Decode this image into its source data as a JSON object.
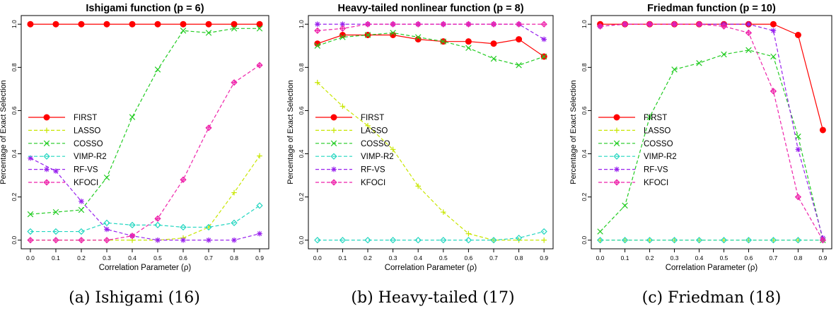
{
  "chart_data": [
    {
      "type": "line",
      "title": "Ishigami function (p = 6)",
      "xlabel": "Correlation Parameter (ρ)",
      "ylabel": "Percentage of Exact Selection",
      "caption": "(a) Ishigami (16)",
      "x": [
        0.0,
        0.1,
        0.2,
        0.3,
        0.4,
        0.5,
        0.6,
        0.7,
        0.8,
        0.9
      ],
      "x_ticks": [
        "0.0",
        "0.1",
        "0.2",
        "0.3",
        "0.4",
        "0.5",
        "0.6",
        "0.7",
        "0.8",
        "0.9"
      ],
      "y_ticks": [
        "0.0",
        "0.2",
        "0.4",
        "0.6",
        "0.8",
        "1.0"
      ],
      "xlim": [
        0.0,
        0.9
      ],
      "ylim": [
        0.0,
        1.0
      ],
      "legend": "left-middle",
      "series": [
        {
          "name": "FIRST",
          "color": "#ff0000",
          "marker": "dot",
          "values": [
            1,
            1,
            1,
            1,
            1,
            1,
            1,
            1,
            1,
            1
          ]
        },
        {
          "name": "LASSO",
          "color": "#c8e600",
          "marker": "plus",
          "values": [
            0,
            0,
            0,
            0,
            0,
            0,
            0.01,
            0.06,
            0.22,
            0.39
          ]
        },
        {
          "name": "COSSO",
          "color": "#22cc22",
          "marker": "x",
          "values": [
            0.12,
            0.13,
            0.14,
            0.29,
            0.57,
            0.79,
            0.97,
            0.96,
            0.98,
            0.98
          ]
        },
        {
          "name": "VIMP-R2",
          "color": "#22d6c0",
          "marker": "diamond",
          "values": [
            0.04,
            0.04,
            0.04,
            0.08,
            0.07,
            0.07,
            0.06,
            0.06,
            0.08,
            0.16
          ]
        },
        {
          "name": "RF-VS",
          "color": "#9922ee",
          "marker": "asterisk",
          "values": [
            0.38,
            0.32,
            0.18,
            0.05,
            0.02,
            0,
            0,
            0,
            0,
            0.03
          ]
        },
        {
          "name": "KFOCI",
          "color": "#ee22aa",
          "marker": "diamond-plus",
          "values": [
            0,
            0,
            0,
            0,
            0.02,
            0.1,
            0.28,
            0.52,
            0.73,
            0.81
          ]
        }
      ]
    },
    {
      "type": "line",
      "title": "Heavy-tailed nonlinear function (p = 8)",
      "xlabel": "Correlation Parameter (ρ)",
      "ylabel": "Percentage of Exact Selection",
      "caption": "(b) Heavy-tailed (17)",
      "x": [
        0.0,
        0.1,
        0.2,
        0.3,
        0.4,
        0.5,
        0.6,
        0.7,
        0.8,
        0.9
      ],
      "x_ticks": [
        "0.0",
        "0.1",
        "0.2",
        "0.3",
        "0.4",
        "0.5",
        "0.6",
        "0.7",
        "0.8",
        "0.9"
      ],
      "y_ticks": [
        "0.0",
        "0.2",
        "0.4",
        "0.6",
        "0.8",
        "1.0"
      ],
      "xlim": [
        0.0,
        0.9
      ],
      "ylim": [
        0.0,
        1.0
      ],
      "legend": "left-middle",
      "series": [
        {
          "name": "FIRST",
          "color": "#ff0000",
          "marker": "dot",
          "values": [
            0.91,
            0.95,
            0.95,
            0.95,
            0.93,
            0.92,
            0.92,
            0.91,
            0.93,
            0.85
          ]
        },
        {
          "name": "LASSO",
          "color": "#c8e600",
          "marker": "plus",
          "values": [
            0.73,
            0.62,
            0.53,
            0.42,
            0.25,
            0.13,
            0.03,
            0,
            0,
            0
          ]
        },
        {
          "name": "COSSO",
          "color": "#22cc22",
          "marker": "x",
          "values": [
            0.9,
            0.94,
            0.95,
            0.96,
            0.94,
            0.92,
            0.89,
            0.84,
            0.81,
            0.85
          ]
        },
        {
          "name": "VIMP-R2",
          "color": "#22d6c0",
          "marker": "diamond",
          "values": [
            0,
            0,
            0,
            0,
            0,
            0,
            0,
            0,
            0.01,
            0.04
          ]
        },
        {
          "name": "RF-VS",
          "color": "#9922ee",
          "marker": "asterisk",
          "values": [
            1,
            1,
            1,
            1,
            1,
            1,
            1,
            1,
            1,
            0.93
          ]
        },
        {
          "name": "KFOCI",
          "color": "#ee22aa",
          "marker": "diamond-plus",
          "values": [
            0.97,
            0.98,
            1,
            1,
            1,
            1,
            1,
            1,
            1,
            1
          ]
        }
      ]
    },
    {
      "type": "line",
      "title": "Friedman function (p = 10)",
      "xlabel": "Correlation Parameter (ρ)",
      "ylabel": "Percentage of Exact Selection",
      "caption": "(c) Friedman (18)",
      "x": [
        0.0,
        0.1,
        0.2,
        0.3,
        0.4,
        0.5,
        0.6,
        0.7,
        0.8,
        0.9
      ],
      "x_ticks": [
        "0.0",
        "0.1",
        "0.2",
        "0.3",
        "0.4",
        "0.5",
        "0.6",
        "0.7",
        "0.8",
        "0.9"
      ],
      "y_ticks": [
        "0.0",
        "0.2",
        "0.4",
        "0.6",
        "0.8",
        "1.0"
      ],
      "xlim": [
        0.0,
        0.9
      ],
      "ylim": [
        0.0,
        1.0
      ],
      "legend": "left-middle",
      "series": [
        {
          "name": "FIRST",
          "color": "#ff0000",
          "marker": "dot",
          "values": [
            1,
            1,
            1,
            1,
            1,
            1,
            1,
            1,
            0.95,
            0.51
          ]
        },
        {
          "name": "LASSO",
          "color": "#c8e600",
          "marker": "plus",
          "values": [
            0,
            0,
            0,
            0,
            0,
            0,
            0,
            0,
            0,
            0
          ]
        },
        {
          "name": "COSSO",
          "color": "#22cc22",
          "marker": "x",
          "values": [
            0.04,
            0.16,
            0.57,
            0.79,
            0.82,
            0.86,
            0.88,
            0.85,
            0.48,
            0
          ]
        },
        {
          "name": "VIMP-R2",
          "color": "#22d6c0",
          "marker": "diamond",
          "values": [
            0,
            0,
            0,
            0,
            0,
            0,
            0,
            0,
            0,
            0
          ]
        },
        {
          "name": "RF-VS",
          "color": "#9922ee",
          "marker": "asterisk",
          "values": [
            0.99,
            1,
            1,
            1,
            1,
            1,
            1,
            0.97,
            0.42,
            0.01
          ]
        },
        {
          "name": "KFOCI",
          "color": "#ee22aa",
          "marker": "diamond-plus",
          "values": [
            0.99,
            1,
            1,
            1,
            1,
            0.99,
            0.96,
            0.69,
            0.2,
            0
          ]
        }
      ]
    }
  ]
}
